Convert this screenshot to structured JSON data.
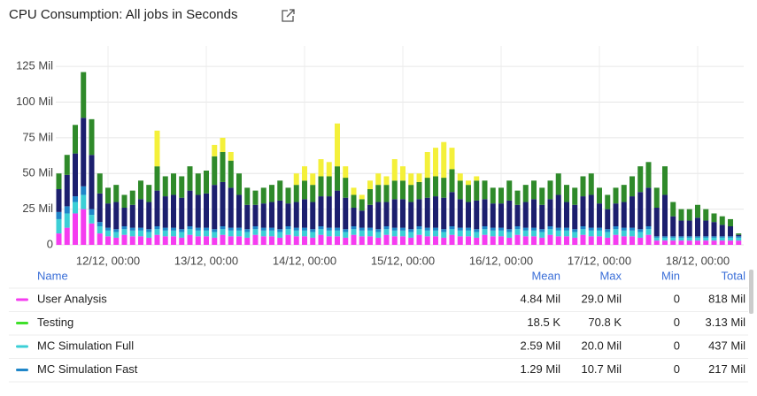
{
  "chart_data": {
    "type": "stacked_bar",
    "title": "CPU Consumption: All jobs in Seconds",
    "categories": [
      null,
      null,
      null,
      null,
      null,
      null,
      "12/12, 00:00",
      null,
      null,
      null,
      null,
      null,
      null,
      null,
      null,
      null,
      null,
      null,
      "13/12, 00:00",
      null,
      null,
      null,
      null,
      null,
      null,
      null,
      null,
      null,
      null,
      null,
      "14/12, 00:00",
      null,
      null,
      null,
      null,
      null,
      null,
      null,
      null,
      null,
      null,
      null,
      "15/12, 00:00",
      null,
      null,
      null,
      null,
      null,
      null,
      null,
      null,
      null,
      null,
      null,
      "16/12, 00:00",
      null,
      null,
      null,
      null,
      null,
      null,
      null,
      null,
      null,
      null,
      null,
      "17/12, 00:00",
      null,
      null,
      null,
      null,
      null,
      null,
      null,
      null,
      null,
      null,
      null,
      "18/12, 00:00",
      null,
      null,
      null,
      null,
      null
    ],
    "series": [
      {
        "color": "#f53cf0",
        "values": [
          8,
          12,
          22,
          25,
          15,
          8,
          6,
          5,
          7,
          6,
          6,
          5,
          7,
          6,
          6,
          5,
          7,
          6,
          6,
          5,
          7,
          6,
          6,
          5,
          7,
          6,
          6,
          5,
          7,
          6,
          6,
          5,
          7,
          6,
          6,
          5,
          7,
          6,
          6,
          5,
          7,
          6,
          6,
          5,
          7,
          6,
          6,
          5,
          7,
          6,
          6,
          5,
          7,
          6,
          6,
          5,
          7,
          6,
          6,
          5,
          7,
          6,
          6,
          5,
          7,
          6,
          6,
          5,
          7,
          6,
          6,
          5,
          7,
          3,
          3,
          3,
          3,
          3,
          3,
          3,
          3,
          3,
          3,
          3
        ]
      },
      {
        "color": "#3ccfd6",
        "values": [
          10,
          10,
          8,
          10,
          6,
          5,
          4,
          4,
          4,
          4,
          4,
          4,
          4,
          4,
          4,
          4,
          4,
          4,
          4,
          4,
          4,
          4,
          4,
          4,
          4,
          4,
          4,
          4,
          4,
          4,
          4,
          4,
          4,
          4,
          4,
          4,
          4,
          4,
          4,
          4,
          4,
          4,
          4,
          4,
          4,
          4,
          4,
          4,
          4,
          4,
          4,
          4,
          4,
          4,
          4,
          4,
          4,
          4,
          4,
          4,
          4,
          4,
          4,
          4,
          4,
          4,
          4,
          4,
          4,
          4,
          4,
          4,
          4,
          2,
          2,
          2,
          2,
          2,
          2,
          2,
          2,
          2,
          2,
          2
        ]
      },
      {
        "color": "#1f86c9",
        "values": [
          5,
          5,
          4,
          6,
          4,
          3,
          2,
          2,
          2,
          2,
          2,
          2,
          2,
          2,
          2,
          2,
          2,
          2,
          2,
          2,
          2,
          2,
          2,
          2,
          2,
          2,
          2,
          2,
          2,
          2,
          2,
          2,
          2,
          2,
          2,
          2,
          2,
          2,
          2,
          2,
          2,
          2,
          2,
          2,
          2,
          2,
          2,
          2,
          2,
          2,
          2,
          2,
          2,
          2,
          2,
          2,
          2,
          2,
          2,
          2,
          2,
          2,
          2,
          2,
          2,
          2,
          2,
          2,
          2,
          2,
          2,
          2,
          2,
          1,
          1,
          1,
          1,
          1,
          1,
          1,
          1,
          1,
          1,
          1
        ]
      },
      {
        "color": "#1c1f6e",
        "values": [
          16,
          22,
          30,
          48,
          38,
          20,
          17,
          19,
          13,
          16,
          20,
          19,
          25,
          22,
          23,
          22,
          25,
          23,
          24,
          31,
          31,
          28,
          23,
          17,
          15,
          17,
          18,
          20,
          16,
          18,
          20,
          19,
          21,
          22,
          26,
          22,
          13,
          12,
          16,
          19,
          17,
          20,
          20,
          19,
          19,
          21,
          22,
          22,
          24,
          20,
          18,
          20,
          19,
          17,
          17,
          20,
          15,
          18,
          20,
          17,
          19,
          23,
          18,
          17,
          21,
          23,
          17,
          14,
          16,
          18,
          22,
          26,
          27,
          20,
          29,
          14,
          11,
          11,
          13,
          11,
          10,
          8,
          7,
          1
        ]
      },
      {
        "color": "#2f8a2a",
        "values": [
          11,
          14,
          20,
          32,
          25,
          14,
          11,
          12,
          9,
          10,
          13,
          12,
          17,
          14,
          15,
          15,
          17,
          15,
          16,
          20,
          21,
          19,
          15,
          12,
          10,
          11,
          12,
          14,
          11,
          12,
          13,
          12,
          14,
          14,
          17,
          14,
          9,
          8,
          11,
          12,
          12,
          13,
          13,
          12,
          12,
          14,
          14,
          14,
          16,
          13,
          12,
          14,
          13,
          11,
          11,
          14,
          10,
          12,
          13,
          12,
          13,
          15,
          12,
          12,
          14,
          15,
          11,
          10,
          11,
          12,
          14,
          18,
          18,
          14,
          20,
          10,
          8,
          8,
          9,
          8,
          6,
          6,
          5,
          1
        ]
      },
      {
        "color": "#f4f03a",
        "values": [
          0,
          0,
          0,
          0,
          0,
          0,
          0,
          0,
          0,
          0,
          0,
          0,
          25,
          0,
          0,
          0,
          0,
          0,
          0,
          8,
          10,
          6,
          0,
          0,
          0,
          0,
          0,
          0,
          0,
          8,
          10,
          8,
          12,
          10,
          30,
          8,
          5,
          3,
          6,
          8,
          6,
          15,
          10,
          8,
          6,
          18,
          20,
          25,
          15,
          5,
          3,
          3,
          0,
          0,
          0,
          0,
          0,
          0,
          0,
          0,
          0,
          0,
          0,
          0,
          0,
          0,
          0,
          0,
          0,
          0,
          0,
          0,
          0,
          0,
          0,
          0,
          0,
          0,
          0,
          0,
          0,
          0,
          0,
          0
        ]
      }
    ],
    "ylim": [
      0,
      130
    ],
    "yticks": [
      0,
      {
        "value": 25,
        "label": "25 Mil"
      },
      {
        "value": 50,
        "label": "50 Mil"
      },
      {
        "value": 75,
        "label": "75 Mil"
      },
      {
        "value": 100,
        "label": "100 Mil"
      },
      {
        "value": 125,
        "label": "125 Mil"
      }
    ],
    "grid": true
  },
  "legend_table": {
    "columns": [
      "Name",
      "Mean",
      "Max",
      "Min",
      "Total"
    ],
    "rows": [
      {
        "name": "User Analysis",
        "color": "#f53cf0",
        "mean": "4.84 Mil",
        "max": "29.0 Mil",
        "min": 0,
        "total": "818 Mil"
      },
      {
        "name": "Testing",
        "color": "#3fe02a",
        "mean": "18.5 K",
        "max": "70.8 K",
        "min": 0,
        "total": "3.13 Mil"
      },
      {
        "name": "MC Simulation Full",
        "color": "#3ccfd6",
        "mean": "2.59 Mil",
        "max": "20.0 Mil",
        "min": 0,
        "total": "437 Mil"
      },
      {
        "name": "MC Simulation Fast",
        "color": "#1f86c9",
        "mean": "1.29 Mil",
        "max": "10.7 Mil",
        "min": 0,
        "total": "217 Mil"
      }
    ]
  }
}
